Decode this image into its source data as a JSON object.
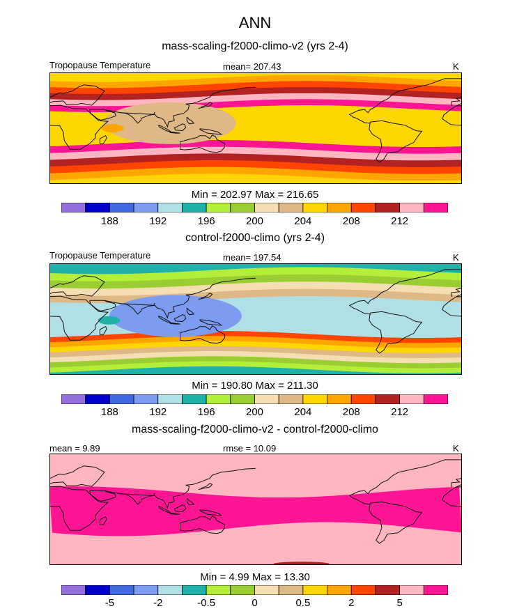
{
  "figure_title": "ANN",
  "coast_color": "#111111",
  "chart_data": [
    {
      "type": "heatmap",
      "title": "mass-scaling-f2000-climo-v2 (yrs 2-4)",
      "variable": "Tropopause Temperature",
      "units": "K",
      "mean_text": "mean= 207.43",
      "minmax_text": "Min = 202.97 Max = 216.65",
      "min": 202.97,
      "max": 216.65,
      "colorbar": {
        "colors": [
          "#9370db",
          "#0000cd",
          "#4169e1",
          "#7b9cf0",
          "#b0e0e6",
          "#20b2aa",
          "#b3ee3a",
          "#9acd32",
          "#f5deb3",
          "#deb887",
          "#ffd700",
          "#ffa500",
          "#ff4500",
          "#b22222",
          "#ffb6c1",
          "#ff1493"
        ],
        "tick_labels": [
          "188",
          "192",
          "196",
          "200",
          "204",
          "208",
          "212"
        ],
        "tick_index": [
          2,
          4,
          6,
          8,
          10,
          12,
          14
        ]
      },
      "field": {
        "bands_top": [
          15,
          14,
          13,
          12,
          11,
          10
        ],
        "core": 10,
        "bands_bottom": [
          10,
          11,
          12,
          13,
          14,
          15
        ],
        "blobs": [
          {
            "lon": 105,
            "lat": 8,
            "color": 9,
            "size": "large"
          },
          {
            "lon": 55,
            "lat": 0,
            "color": 11,
            "size": "small"
          }
        ]
      }
    },
    {
      "type": "heatmap",
      "title": "control-f2000-climo (yrs 2-4)",
      "variable": "Tropopause Temperature",
      "units": "K",
      "mean_text": "mean= 197.54",
      "minmax_text": "Min = 190.80 Max = 211.30",
      "min": 190.8,
      "max": 211.3,
      "colorbar": {
        "colors": [
          "#9370db",
          "#0000cd",
          "#4169e1",
          "#7b9cf0",
          "#b0e0e6",
          "#20b2aa",
          "#b3ee3a",
          "#9acd32",
          "#f5deb3",
          "#deb887",
          "#ffd700",
          "#ffa500",
          "#ff4500",
          "#b22222",
          "#ffb6c1",
          "#ff1493"
        ],
        "tick_labels": [
          "188",
          "192",
          "196",
          "200",
          "204",
          "208",
          "212"
        ],
        "tick_index": [
          2,
          4,
          6,
          8,
          10,
          12,
          14
        ]
      },
      "field": {
        "bands_top": [
          9,
          8,
          7,
          6,
          5
        ],
        "core": 4,
        "bands_bottom": [
          5,
          6,
          7,
          8,
          9,
          10,
          11,
          12
        ],
        "blobs": [
          {
            "lon": 110,
            "lat": 5,
            "color": 3,
            "size": "large"
          },
          {
            "lon": 52,
            "lat": -2,
            "color": 5,
            "size": "small"
          }
        ]
      }
    },
    {
      "type": "heatmap",
      "title": "mass-scaling-f2000-climo-v2 - control-f2000-climo",
      "variable": "",
      "units": "K",
      "mean_text": "mean =   9.89",
      "rmse_text": "rmse =  10.09",
      "minmax_text": "Min =   4.99 Max =  13.30",
      "min": 4.99,
      "max": 13.3,
      "colorbar": {
        "colors": [
          "#9370db",
          "#0000cd",
          "#4169e1",
          "#7b9cf0",
          "#b0e0e6",
          "#20b2aa",
          "#b3ee3a",
          "#9acd32",
          "#f5deb3",
          "#deb887",
          "#ffd700",
          "#ffa500",
          "#ff4500",
          "#b22222",
          "#ffb6c1",
          "#ff1493"
        ],
        "tick_labels": [
          "-5",
          "-2",
          "-0.5",
          "0",
          "0.5",
          "2",
          "5"
        ],
        "tick_index": [
          2,
          4,
          6,
          8,
          10,
          12,
          14
        ]
      },
      "field": {
        "bands_top": [
          14
        ],
        "core": 15,
        "bands_bottom": [
          14
        ],
        "blobs": []
      }
    }
  ]
}
